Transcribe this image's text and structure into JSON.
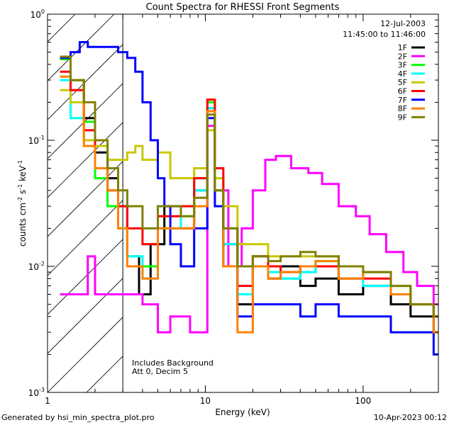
{
  "chart_data": {
    "type": "line",
    "title": "Count Spectra for RHESSI Front Segments",
    "xlabel": "Energy (keV)",
    "ylabel_parts": {
      "base": "counts cm",
      "e1": "-2",
      "mid": " s",
      "e2": "-1",
      "mid2": " keV",
      "e3": "-1"
    },
    "x_scale": "log",
    "y_scale": "log",
    "xlim": [
      1,
      300
    ],
    "ylim": [
      0.001,
      1
    ],
    "x_ticks": [
      {
        "value": 1,
        "label": "1"
      },
      {
        "value": 10,
        "label": "10"
      },
      {
        "value": 100,
        "label": "100"
      }
    ],
    "y_ticks": [
      {
        "value": 0.001,
        "base": "10",
        "exp": "-3"
      },
      {
        "value": 0.01,
        "base": "10",
        "exp": "-2"
      },
      {
        "value": 0.1,
        "base": "10",
        "exp": "-1"
      },
      {
        "value": 1,
        "base": "10",
        "exp": "0"
      }
    ],
    "date_label": "12-Jul-2003",
    "time_label": "11:45:00 to 11:46:00",
    "note_lines": [
      "Includes Background",
      "Att 0, Decim 5"
    ],
    "hatched_upper_energy": 3,
    "legend_position": "top-right",
    "series": [
      {
        "name": "1F",
        "color": "#000000",
        "points": [
          [
            1.2,
            0.45
          ],
          [
            1.4,
            0.3
          ],
          [
            1.7,
            0.15
          ],
          [
            2.0,
            0.08
          ],
          [
            2.4,
            0.05
          ],
          [
            2.8,
            0.03
          ],
          [
            3.2,
            0.012
          ],
          [
            3.8,
            0.006
          ],
          [
            4.5,
            0.015
          ],
          [
            5.5,
            0.03
          ],
          [
            7.0,
            0.02
          ],
          [
            8.5,
            0.04
          ],
          [
            10.3,
            0.18
          ],
          [
            11.5,
            0.04
          ],
          [
            13,
            0.015
          ],
          [
            16,
            0.005
          ],
          [
            20,
            0.012
          ],
          [
            25,
            0.008
          ],
          [
            30,
            0.01
          ],
          [
            40,
            0.007
          ],
          [
            50,
            0.008
          ],
          [
            70,
            0.006
          ],
          [
            100,
            0.007
          ],
          [
            150,
            0.005
          ],
          [
            200,
            0.004
          ],
          [
            280,
            0.003
          ]
        ]
      },
      {
        "name": "2F",
        "color": "#ff00ff",
        "points": [
          [
            1.2,
            0.006
          ],
          [
            1.6,
            0.006
          ],
          [
            1.8,
            0.012
          ],
          [
            2.0,
            0.006
          ],
          [
            2.5,
            0.006
          ],
          [
            3.5,
            0.006
          ],
          [
            4.0,
            0.005
          ],
          [
            5.0,
            0.003
          ],
          [
            6.0,
            0.004
          ],
          [
            8.0,
            0.003
          ],
          [
            10.3,
            0.13
          ],
          [
            11.5,
            0.04
          ],
          [
            14,
            0.01
          ],
          [
            17,
            0.02
          ],
          [
            20,
            0.04
          ],
          [
            24,
            0.07
          ],
          [
            28,
            0.075
          ],
          [
            35,
            0.06
          ],
          [
            45,
            0.055
          ],
          [
            55,
            0.045
          ],
          [
            70,
            0.03
          ],
          [
            90,
            0.025
          ],
          [
            110,
            0.018
          ],
          [
            140,
            0.013
          ],
          [
            180,
            0.009
          ],
          [
            220,
            0.007
          ],
          [
            280,
            0.005
          ]
        ]
      },
      {
        "name": "3F",
        "color": "#00ff00",
        "points": [
          [
            1.2,
            0.44
          ],
          [
            1.4,
            0.3
          ],
          [
            1.7,
            0.14
          ],
          [
            2.0,
            0.05
          ],
          [
            2.4,
            0.03
          ],
          [
            2.8,
            0.02
          ],
          [
            3.2,
            0.012
          ],
          [
            4.0,
            0.01
          ],
          [
            5.0,
            0.02
          ],
          [
            7.0,
            0.025
          ],
          [
            8.5,
            0.05
          ],
          [
            10.3,
            0.2
          ],
          [
            11.5,
            0.05
          ],
          [
            13,
            0.02
          ],
          [
            16,
            0.006
          ],
          [
            20,
            0.012
          ],
          [
            25,
            0.01
          ],
          [
            30,
            0.008
          ],
          [
            40,
            0.009
          ],
          [
            50,
            0.011
          ],
          [
            70,
            0.008
          ],
          [
            100,
            0.009
          ],
          [
            150,
            0.007
          ],
          [
            200,
            0.005
          ],
          [
            280,
            0.004
          ]
        ]
      },
      {
        "name": "4F",
        "color": "#00ffff",
        "points": [
          [
            1.2,
            0.3
          ],
          [
            1.4,
            0.15
          ],
          [
            1.7,
            0.12
          ],
          [
            2.0,
            0.06
          ],
          [
            2.4,
            0.04
          ],
          [
            2.8,
            0.02
          ],
          [
            3.2,
            0.012
          ],
          [
            4.0,
            0.008
          ],
          [
            5.0,
            0.02
          ],
          [
            7.0,
            0.03
          ],
          [
            8.5,
            0.04
          ],
          [
            10.3,
            0.18
          ],
          [
            11.5,
            0.04
          ],
          [
            13,
            0.015
          ],
          [
            16,
            0.006
          ],
          [
            20,
            0.01
          ],
          [
            25,
            0.009
          ],
          [
            30,
            0.008
          ],
          [
            40,
            0.009
          ],
          [
            50,
            0.01
          ],
          [
            70,
            0.008
          ],
          [
            100,
            0.007
          ],
          [
            150,
            0.006
          ],
          [
            200,
            0.005
          ],
          [
            280,
            0.004
          ]
        ]
      },
      {
        "name": "5F",
        "color": "#c8c800",
        "points": [
          [
            1.2,
            0.25
          ],
          [
            1.4,
            0.2
          ],
          [
            1.7,
            0.1
          ],
          [
            2.0,
            0.09
          ],
          [
            2.4,
            0.07
          ],
          [
            2.8,
            0.07
          ],
          [
            3.2,
            0.08
          ],
          [
            3.6,
            0.09
          ],
          [
            4.0,
            0.07
          ],
          [
            5.0,
            0.08
          ],
          [
            6.0,
            0.05
          ],
          [
            7.0,
            0.05
          ],
          [
            8.5,
            0.06
          ],
          [
            10.3,
            0.12
          ],
          [
            11.5,
            0.05
          ],
          [
            13,
            0.03
          ],
          [
            16,
            0.015
          ],
          [
            20,
            0.015
          ],
          [
            25,
            0.012
          ],
          [
            30,
            0.012
          ],
          [
            40,
            0.012
          ],
          [
            50,
            0.012
          ],
          [
            70,
            0.01
          ],
          [
            100,
            0.009
          ],
          [
            150,
            0.007
          ],
          [
            200,
            0.005
          ],
          [
            280,
            0.004
          ]
        ]
      },
      {
        "name": "6F",
        "color": "#ff0000",
        "points": [
          [
            1.2,
            0.35
          ],
          [
            1.4,
            0.25
          ],
          [
            1.7,
            0.12
          ],
          [
            2.0,
            0.06
          ],
          [
            2.4,
            0.04
          ],
          [
            2.8,
            0.03
          ],
          [
            3.2,
            0.02
          ],
          [
            4.0,
            0.015
          ],
          [
            5.0,
            0.025
          ],
          [
            7.0,
            0.03
          ],
          [
            8.5,
            0.05
          ],
          [
            10.3,
            0.21
          ],
          [
            11.5,
            0.06
          ],
          [
            13,
            0.02
          ],
          [
            16,
            0.007
          ],
          [
            20,
            0.012
          ],
          [
            25,
            0.01
          ],
          [
            30,
            0.009
          ],
          [
            40,
            0.01
          ],
          [
            50,
            0.01
          ],
          [
            70,
            0.008
          ],
          [
            100,
            0.008
          ],
          [
            150,
            0.006
          ],
          [
            200,
            0.005
          ],
          [
            280,
            0.004
          ]
        ]
      },
      {
        "name": "7F",
        "color": "#0000ff",
        "points": [
          [
            1.2,
            0.45
          ],
          [
            1.4,
            0.5
          ],
          [
            1.6,
            0.6
          ],
          [
            1.8,
            0.55
          ],
          [
            2.0,
            0.55
          ],
          [
            2.4,
            0.55
          ],
          [
            2.8,
            0.5
          ],
          [
            3.2,
            0.45
          ],
          [
            3.6,
            0.35
          ],
          [
            4.0,
            0.2
          ],
          [
            4.5,
            0.1
          ],
          [
            5.0,
            0.05
          ],
          [
            5.5,
            0.03
          ],
          [
            6.0,
            0.015
          ],
          [
            7.0,
            0.01
          ],
          [
            8.5,
            0.02
          ],
          [
            10.3,
            0.15
          ],
          [
            11.5,
            0.03
          ],
          [
            13,
            0.01
          ],
          [
            16,
            0.004
          ],
          [
            20,
            0.005
          ],
          [
            25,
            0.005
          ],
          [
            30,
            0.005
          ],
          [
            40,
            0.004
          ],
          [
            50,
            0.005
          ],
          [
            70,
            0.004
          ],
          [
            100,
            0.004
          ],
          [
            150,
            0.003
          ],
          [
            200,
            0.003
          ],
          [
            280,
            0.002
          ]
        ]
      },
      {
        "name": "8F",
        "color": "#ff8000",
        "points": [
          [
            1.2,
            0.32
          ],
          [
            1.4,
            0.3
          ],
          [
            1.7,
            0.09
          ],
          [
            2.0,
            0.06
          ],
          [
            2.4,
            0.04
          ],
          [
            2.8,
            0.02
          ],
          [
            3.2,
            0.01
          ],
          [
            4.0,
            0.008
          ],
          [
            5.0,
            0.02
          ],
          [
            7.0,
            0.02
          ],
          [
            8.5,
            0.03
          ],
          [
            10.3,
            0.17
          ],
          [
            11.5,
            0.04
          ],
          [
            13,
            0.01
          ],
          [
            16,
            0.003
          ],
          [
            20,
            0.01
          ],
          [
            25,
            0.008
          ],
          [
            30,
            0.009
          ],
          [
            40,
            0.01
          ],
          [
            50,
            0.011
          ],
          [
            70,
            0.008
          ],
          [
            100,
            0.009
          ],
          [
            150,
            0.006
          ],
          [
            200,
            0.005
          ],
          [
            280,
            0.003
          ]
        ]
      },
      {
        "name": "9F",
        "color": "#808000",
        "points": [
          [
            1.2,
            0.46
          ],
          [
            1.4,
            0.3
          ],
          [
            1.7,
            0.2
          ],
          [
            2.0,
            0.1
          ],
          [
            2.4,
            0.06
          ],
          [
            2.8,
            0.04
          ],
          [
            3.2,
            0.03
          ],
          [
            4.0,
            0.02
          ],
          [
            5.0,
            0.03
          ],
          [
            7.0,
            0.025
          ],
          [
            8.5,
            0.035
          ],
          [
            10.3,
            0.16
          ],
          [
            11.5,
            0.04
          ],
          [
            13,
            0.02
          ],
          [
            16,
            0.01
          ],
          [
            20,
            0.012
          ],
          [
            25,
            0.011
          ],
          [
            30,
            0.012
          ],
          [
            40,
            0.013
          ],
          [
            50,
            0.012
          ],
          [
            70,
            0.01
          ],
          [
            100,
            0.009
          ],
          [
            150,
            0.007
          ],
          [
            200,
            0.005
          ],
          [
            280,
            0.004
          ]
        ]
      }
    ]
  },
  "footer": {
    "left": "Generated by hsi_min_spectra_plot.pro",
    "right": "10-Apr-2023 00:12"
  }
}
